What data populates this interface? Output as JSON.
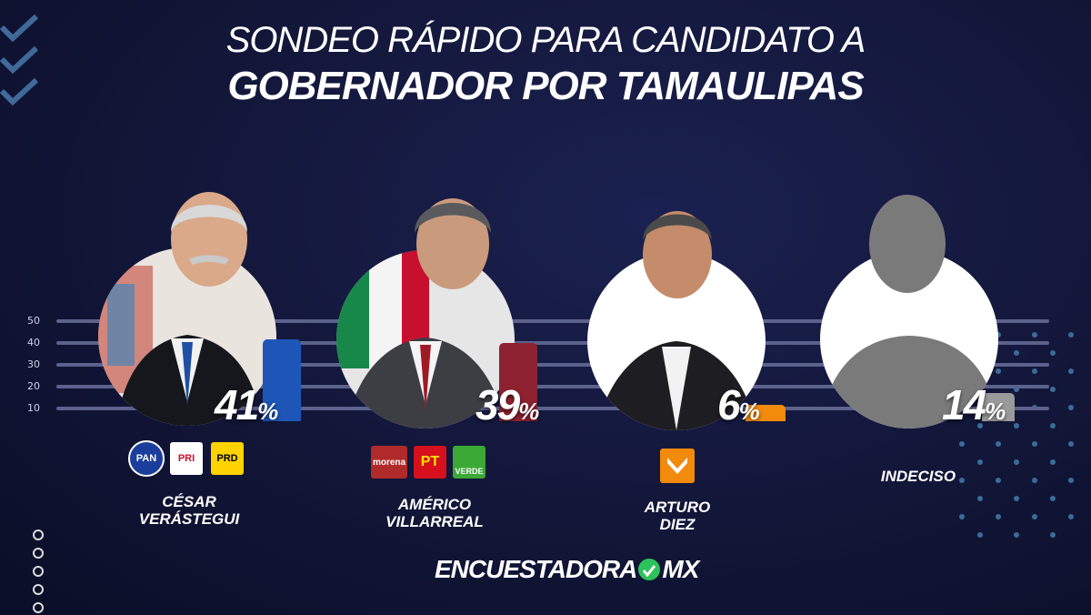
{
  "title": {
    "line1": "SONDEO RÁPIDO PARA CANDIDATO A",
    "line2": "GOBERNADOR POR TAMAULIPAS"
  },
  "chart_data": {
    "type": "bar",
    "title": "SONDEO RÁPIDO PARA CANDIDATO A GOBERNADOR POR TAMAULIPAS",
    "categories": [
      "CÉSAR VERÁSTEGUI",
      "AMÉRICO VILLARREAL",
      "ARTURO DIEZ",
      "INDECISO"
    ],
    "values": [
      41,
      39,
      6,
      14
    ],
    "unit": "%",
    "y_ticks": [
      "50",
      "40",
      "30",
      "20",
      "10"
    ],
    "ylim": [
      0,
      50
    ],
    "grid": true,
    "bar_colors": [
      "#1e56b8",
      "#8e2130",
      "#f28a0c",
      "#9a9a9a"
    ]
  },
  "candidates": [
    {
      "name_line1": "CÉSAR",
      "name_line2": "VERÁSTEGUI",
      "value": "41",
      "unit": "%",
      "parties": [
        {
          "label": "PAN",
          "bg": "#1b3d9c",
          "fg": "#ffffff",
          "icon": "pan-logo-icon"
        },
        {
          "label": "PRI",
          "bg": "#ffffff",
          "fg": "#c8102e",
          "icon": "pri-logo-icon"
        },
        {
          "label": "PRD",
          "bg": "#ffd200",
          "fg": "#000000",
          "icon": "prd-logo-icon"
        }
      ]
    },
    {
      "name_line1": "AMÉRICO",
      "name_line2": "VILLARREAL",
      "value": "39",
      "unit": "%",
      "parties": [
        {
          "label": "morena",
          "bg": "#b02a2a",
          "fg": "#ffffff",
          "icon": "morena-logo-icon"
        },
        {
          "label": "PT",
          "bg": "#d6101c",
          "fg": "#ffe000",
          "icon": "pt-logo-icon"
        },
        {
          "label": "VERDE",
          "bg": "#3aa935",
          "fg": "#ffffff",
          "icon": "verde-logo-icon"
        }
      ]
    },
    {
      "name_line1": "ARTURO",
      "name_line2": "DIEZ",
      "value": "6",
      "unit": "%",
      "parties": [
        {
          "label": "MC",
          "bg": "#f28a0c",
          "fg": "#ffffff",
          "icon": "movimiento-ciudadano-logo-icon"
        }
      ]
    },
    {
      "name_line1": "INDECISO",
      "name_line2": "",
      "value": "14",
      "unit": "%",
      "parties": []
    }
  ],
  "brand": {
    "left": "ENCUESTADORA",
    "right": "MX"
  }
}
